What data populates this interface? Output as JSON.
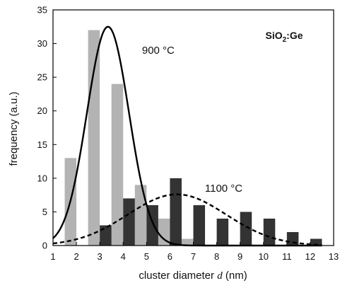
{
  "chart_data": {
    "type": "bar",
    "sample_label": {
      "main": "SiO",
      "sub": "2",
      "rest": ":Ge"
    },
    "xlabel": {
      "pre": "cluster diameter ",
      "italic": "d",
      "post": " (nm)"
    },
    "ylabel": "frequency (a.u.)",
    "xlim": [
      1,
      13
    ],
    "ylim": [
      0,
      35
    ],
    "xticks": [
      1,
      2,
      3,
      4,
      5,
      6,
      7,
      8,
      9,
      10,
      11,
      12,
      13
    ],
    "yticks": [
      0,
      5,
      10,
      15,
      20,
      25,
      30,
      35
    ],
    "bar_width": 0.5,
    "grid": false,
    "series": [
      {
        "name": "900 °C",
        "color": "#b3b3b3",
        "x": [
          1.75,
          2.75,
          3.75,
          4.75,
          5.75,
          6.75
        ],
        "values": [
          13,
          32,
          24,
          9,
          4,
          1
        ]
      },
      {
        "name": "1100 °C",
        "color": "#333333",
        "x": [
          3.25,
          4.25,
          5.25,
          6.25,
          7.25,
          8.25,
          9.25,
          10.25,
          11.25,
          12.25
        ],
        "values": [
          3,
          7,
          6,
          10,
          6,
          4,
          5,
          4,
          2,
          1
        ]
      }
    ],
    "fits": [
      {
        "series": "900 °C",
        "style": "solid",
        "color": "#000000",
        "amplitude": 32.5,
        "center": 3.35,
        "sigma": 0.9
      },
      {
        "series": "1100 °C",
        "style": "dashed",
        "color": "#000000",
        "amplitude": 7.6,
        "center": 6.3,
        "sigma": 2.1
      }
    ],
    "annotations": [
      {
        "text": "900 °C",
        "x": 5.5,
        "y": 28.5
      },
      {
        "text": "1100 °C",
        "x": 8.3,
        "y": 8.0
      }
    ]
  }
}
